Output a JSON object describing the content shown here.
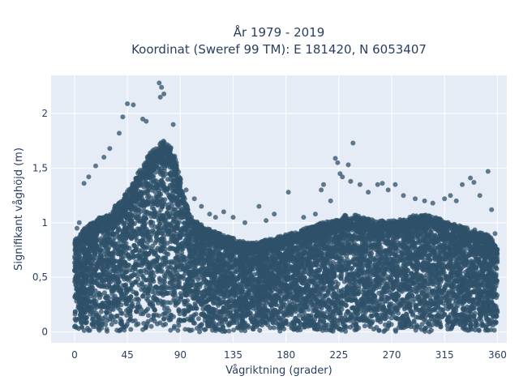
{
  "chart_data": {
    "type": "scatter",
    "title_line1": "År 1979 - 2019",
    "title_line2": "Koordinat (Sweref 99 TM): E 181420, N 6053407",
    "xlabel": "Vågriktning (grader)",
    "ylabel": "Signifikant våghöjd (m)",
    "xlim": [
      -20,
      368
    ],
    "ylim": [
      -0.1,
      2.35
    ],
    "xticks": [
      0,
      45,
      90,
      135,
      180,
      225,
      270,
      315,
      360
    ],
    "xtick_labels": [
      "0",
      "45",
      "90",
      "135",
      "180",
      "225",
      "270",
      "315",
      "360"
    ],
    "yticks": [
      0,
      0.5,
      1,
      1.5,
      2
    ],
    "ytick_labels": [
      "0",
      "0,5",
      "1",
      "1,5",
      "2"
    ],
    "grid": true,
    "colors": {
      "plot_bg": "#e5ecf6",
      "grid": "#ffffff",
      "marker": "#2f5269",
      "text": "#2a3f5f"
    },
    "envelope": {
      "x": [
        0,
        10,
        20,
        30,
        40,
        50,
        60,
        70,
        75,
        80,
        85,
        90,
        95,
        100,
        110,
        120,
        130,
        135,
        140,
        150,
        160,
        170,
        180,
        190,
        200,
        210,
        220,
        225,
        230,
        240,
        250,
        260,
        270,
        280,
        290,
        300,
        310,
        320,
        330,
        340,
        350,
        355,
        360
      ],
      "y": [
        0.82,
        0.95,
        1.02,
        1.08,
        1.2,
        1.35,
        1.55,
        1.68,
        1.72,
        1.7,
        1.6,
        1.38,
        1.15,
        1.02,
        0.95,
        0.9,
        0.86,
        0.85,
        0.82,
        0.8,
        0.82,
        0.84,
        0.88,
        0.9,
        0.95,
        0.98,
        1.0,
        1.02,
        1.05,
        1.05,
        1.02,
        1.0,
        1.0,
        1.02,
        1.05,
        1.05,
        1.02,
        0.98,
        0.95,
        0.92,
        0.88,
        0.85,
        0.75
      ]
    },
    "outliers": [
      {
        "x": 72,
        "y": 2.28
      },
      {
        "x": 74,
        "y": 2.24
      },
      {
        "x": 76,
        "y": 2.18
      },
      {
        "x": 73,
        "y": 2.15
      },
      {
        "x": 50,
        "y": 2.08
      },
      {
        "x": 45,
        "y": 2.09
      },
      {
        "x": 41,
        "y": 1.97
      },
      {
        "x": 58,
        "y": 1.95
      },
      {
        "x": 61,
        "y": 1.93
      },
      {
        "x": 84,
        "y": 1.9
      },
      {
        "x": 38,
        "y": 1.82
      },
      {
        "x": 30,
        "y": 1.68
      },
      {
        "x": 25,
        "y": 1.6
      },
      {
        "x": 18,
        "y": 1.52
      },
      {
        "x": 12,
        "y": 1.42
      },
      {
        "x": 8,
        "y": 1.36
      },
      {
        "x": 4,
        "y": 1.0
      },
      {
        "x": 2,
        "y": 0.95
      },
      {
        "x": 95,
        "y": 1.3
      },
      {
        "x": 102,
        "y": 1.22
      },
      {
        "x": 108,
        "y": 1.15
      },
      {
        "x": 115,
        "y": 1.08
      },
      {
        "x": 120,
        "y": 1.05
      },
      {
        "x": 127,
        "y": 1.1
      },
      {
        "x": 135,
        "y": 1.05
      },
      {
        "x": 145,
        "y": 1.0
      },
      {
        "x": 157,
        "y": 1.15
      },
      {
        "x": 163,
        "y": 1.02
      },
      {
        "x": 170,
        "y": 1.08
      },
      {
        "x": 182,
        "y": 1.28
      },
      {
        "x": 195,
        "y": 1.05
      },
      {
        "x": 205,
        "y": 1.08
      },
      {
        "x": 210,
        "y": 1.3
      },
      {
        "x": 212,
        "y": 1.35
      },
      {
        "x": 218,
        "y": 1.2
      },
      {
        "x": 222,
        "y": 1.59
      },
      {
        "x": 224,
        "y": 1.55
      },
      {
        "x": 226,
        "y": 1.45
      },
      {
        "x": 228,
        "y": 1.42
      },
      {
        "x": 233,
        "y": 1.53
      },
      {
        "x": 235,
        "y": 1.38
      },
      {
        "x": 237,
        "y": 1.73
      },
      {
        "x": 243,
        "y": 1.35
      },
      {
        "x": 250,
        "y": 1.28
      },
      {
        "x": 258,
        "y": 1.35
      },
      {
        "x": 262,
        "y": 1.36
      },
      {
        "x": 267,
        "y": 1.3
      },
      {
        "x": 273,
        "y": 1.35
      },
      {
        "x": 280,
        "y": 1.25
      },
      {
        "x": 290,
        "y": 1.22
      },
      {
        "x": 298,
        "y": 1.2
      },
      {
        "x": 305,
        "y": 1.18
      },
      {
        "x": 315,
        "y": 1.22
      },
      {
        "x": 320,
        "y": 1.25
      },
      {
        "x": 325,
        "y": 1.2
      },
      {
        "x": 330,
        "y": 1.35
      },
      {
        "x": 337,
        "y": 1.41
      },
      {
        "x": 340,
        "y": 1.37
      },
      {
        "x": 345,
        "y": 1.25
      },
      {
        "x": 352,
        "y": 1.47
      },
      {
        "x": 355,
        "y": 1.12
      },
      {
        "x": 358,
        "y": 0.9
      }
    ]
  }
}
